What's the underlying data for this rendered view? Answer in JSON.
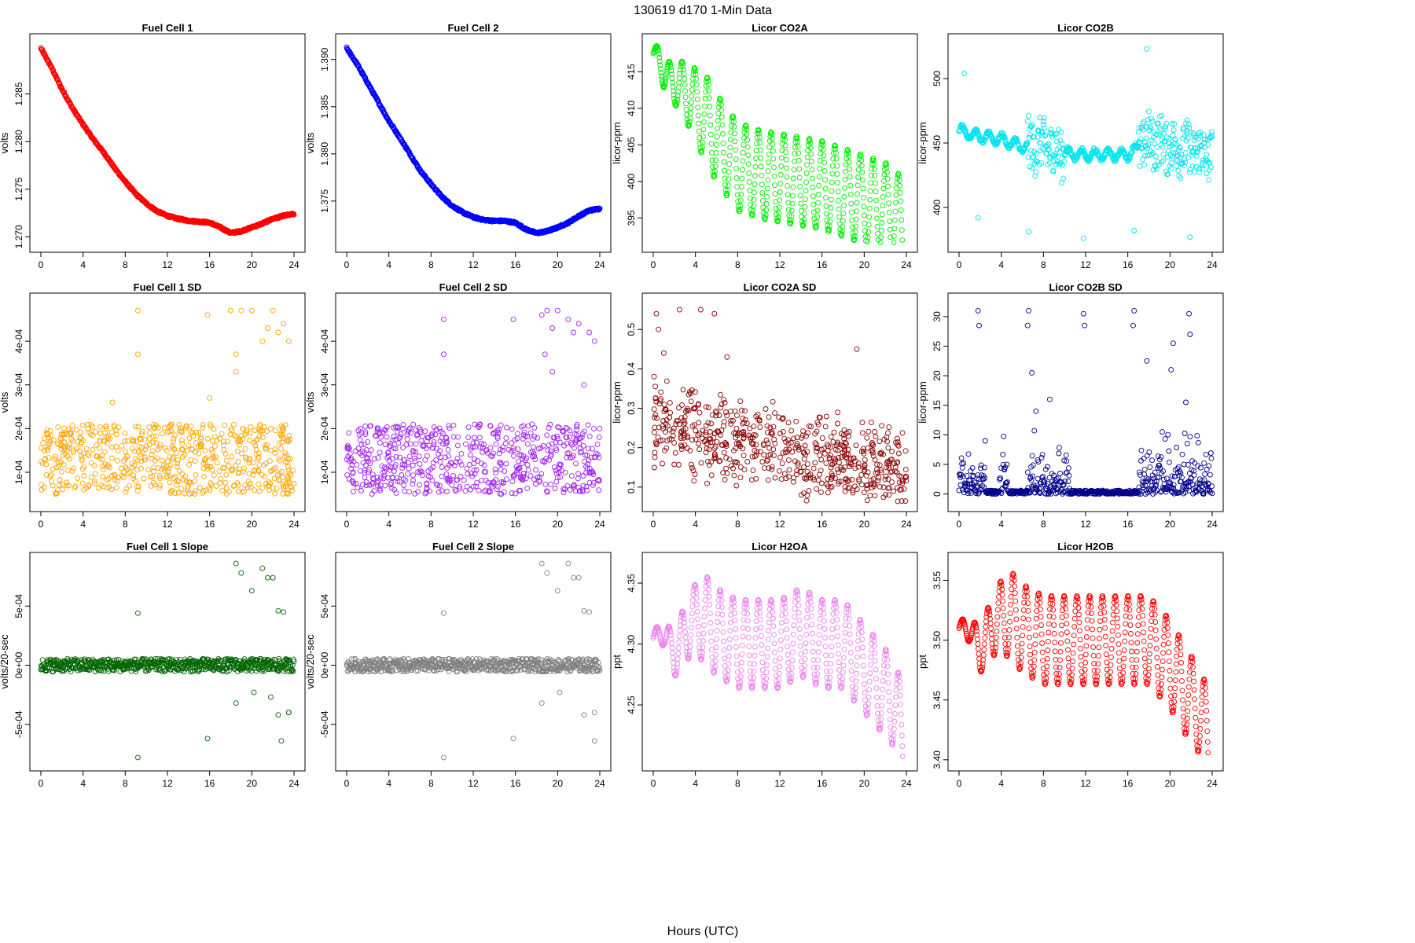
{
  "figure": {
    "title": "130619   d170   1-Min Data",
    "xlabel": "Hours (UTC)"
  },
  "chart_data": [
    {
      "type": "scatter",
      "title": "Fuel Cell 1",
      "xlabel": "",
      "ylabel": "volts",
      "color": "#ff0000",
      "xlim": [
        0,
        24
      ],
      "ylim": [
        1.2693,
        1.2904
      ],
      "xticks": [
        "0",
        "4",
        "8",
        "12",
        "16",
        "20",
        "24"
      ],
      "yticks": [
        "1.270",
        "1.275",
        "1.280",
        "1.285"
      ],
      "ytick_values": [
        1.27,
        1.275,
        1.28,
        1.285
      ],
      "series": [
        {
          "x": [
            0,
            1,
            2,
            3,
            4,
            5,
            6,
            7,
            8,
            9,
            10,
            11,
            12,
            13,
            14,
            15,
            16,
            17,
            18,
            19,
            20,
            21,
            22,
            23,
            24
          ],
          "y": [
            1.2898,
            1.2878,
            1.2855,
            1.2835,
            1.2818,
            1.2802,
            1.2788,
            1.2772,
            1.2758,
            1.2745,
            1.2735,
            1.2727,
            1.2722,
            1.2719,
            1.2717,
            1.2716,
            1.2715,
            1.271,
            1.2704,
            1.2706,
            1.271,
            1.2714,
            1.2719,
            1.2722,
            1.2724
          ]
        }
      ],
      "style": "line"
    },
    {
      "type": "scatter",
      "title": "Fuel Cell 2",
      "xlabel": "",
      "ylabel": "volts",
      "color": "#0000ff",
      "xlim": [
        0,
        24
      ],
      "ylim": [
        1.3705,
        1.3918
      ],
      "xticks": [
        "0",
        "4",
        "8",
        "12",
        "16",
        "20",
        "24"
      ],
      "yticks": [
        "1.375",
        "1.380",
        "1.385",
        "1.390"
      ],
      "ytick_values": [
        1.375,
        1.38,
        1.385,
        1.39
      ],
      "series": [
        {
          "x": [
            0,
            1,
            2,
            3,
            4,
            5,
            6,
            7,
            8,
            9,
            10,
            11,
            12,
            13,
            14,
            15,
            16,
            17,
            18,
            19,
            20,
            21,
            22,
            23,
            24
          ],
          "y": [
            1.3912,
            1.3895,
            1.3875,
            1.3855,
            1.3835,
            1.3818,
            1.38,
            1.3782,
            1.3768,
            1.3755,
            1.3745,
            1.3738,
            1.3733,
            1.373,
            1.3729,
            1.3729,
            1.3727,
            1.372,
            1.3716,
            1.3718,
            1.3722,
            1.3727,
            1.3734,
            1.374,
            1.3742
          ]
        }
      ],
      "style": "line"
    },
    {
      "type": "scatter",
      "title": "Licor CO2A",
      "xlabel": "",
      "ylabel": "licor-ppm",
      "color": "#00ee00",
      "xlim": [
        0,
        24
      ],
      "ylim": [
        391.5,
        419
      ],
      "xticks": [
        "0",
        "4",
        "8",
        "12",
        "16",
        "20",
        "24"
      ],
      "yticks": [
        "395",
        "400",
        "405",
        "410",
        "415"
      ],
      "ytick_values": [
        395,
        400,
        405,
        410,
        415
      ],
      "series": [
        {
          "x": [
            0,
            0.5,
            1,
            2,
            3,
            4,
            5,
            6,
            7,
            8,
            10,
            12,
            14,
            16,
            18,
            20,
            22,
            23,
            24
          ],
          "y": [
            417.5,
            417.2,
            414.5,
            413.5,
            412.5,
            410.5,
            408.5,
            406,
            404,
            402,
            401,
            400.5,
            400,
            399.5,
            398.5,
            397.5,
            396.5,
            396,
            392
          ]
        }
      ],
      "style": "oscillating"
    },
    {
      "type": "scatter",
      "title": "Licor CO2B",
      "xlabel": "",
      "ylabel": "licor-ppm",
      "color": "#00e5ee",
      "xlim": [
        0,
        24
      ],
      "ylim": [
        372,
        528
      ],
      "xticks": [
        "0",
        "4",
        "8",
        "12",
        "16",
        "20",
        "24"
      ],
      "yticks": [
        "400",
        "450",
        "500"
      ],
      "ytick_values": [
        400,
        450,
        500
      ],
      "series": [
        {
          "x": [
            0,
            2,
            4,
            6,
            8,
            10,
            12,
            14,
            16,
            18,
            20,
            22,
            24
          ],
          "y": [
            460,
            455,
            453,
            447,
            448,
            442,
            441,
            441,
            441,
            452,
            448,
            444,
            440
          ]
        }
      ],
      "style": "noisy"
    },
    {
      "type": "scatter",
      "title": "Fuel Cell 1 SD",
      "xlabel": "",
      "ylabel": "volts",
      "color": "#ffa500",
      "xlim": [
        0,
        24
      ],
      "ylim": [
        3e-05,
        0.00049
      ],
      "xticks": [
        "0",
        "4",
        "8",
        "12",
        "16",
        "20",
        "24"
      ],
      "yticks": [
        "1e-04",
        "2e-04",
        "3e-04",
        "4e-04"
      ],
      "ytick_values": [
        0.0001,
        0.0002,
        0.0003,
        0.0004
      ],
      "series": [
        {
          "x": [
            9.2,
            9.2,
            15.8,
            16,
            18,
            18.5,
            19,
            20,
            21,
            21.5,
            22,
            22.5,
            23,
            23.5,
            6.8,
            18.5
          ],
          "y": [
            0.00047,
            0.00037,
            0.00046,
            0.00027,
            0.00047,
            0.00037,
            0.00047,
            0.00047,
            0.0004,
            0.00043,
            0.00047,
            0.00042,
            0.00044,
            0.0004,
            0.00026,
            0.00033
          ]
        }
      ],
      "style": "band",
      "band": [
        5e-05,
        0.00021
      ]
    },
    {
      "type": "scatter",
      "title": "Fuel Cell 2 SD",
      "xlabel": "",
      "ylabel": "volts",
      "color": "#a020f0",
      "xlim": [
        0,
        24
      ],
      "ylim": [
        3e-05,
        0.00049
      ],
      "xticks": [
        "0",
        "4",
        "8",
        "12",
        "16",
        "20",
        "24"
      ],
      "yticks": [
        "1e-04",
        "2e-04",
        "3e-04",
        "4e-04"
      ],
      "ytick_values": [
        0.0001,
        0.0002,
        0.0003,
        0.0004
      ],
      "series": [
        {
          "x": [
            9.2,
            9.2,
            15.8,
            18.5,
            19,
            19.5,
            20,
            21,
            21.5,
            22,
            22.5,
            23,
            23.5,
            18.8,
            19.5
          ],
          "y": [
            0.00045,
            0.00037,
            0.00045,
            0.00046,
            0.00047,
            0.00043,
            0.00047,
            0.00045,
            0.00042,
            0.00044,
            0.0003,
            0.00042,
            0.0004,
            0.00037,
            0.00033
          ]
        }
      ],
      "style": "band",
      "band": [
        5e-05,
        0.00021
      ]
    },
    {
      "type": "scatter",
      "title": "Licor CO2A SD",
      "xlabel": "",
      "ylabel": "licor-ppm",
      "color": "#8b0000",
      "xlim": [
        0,
        24
      ],
      "ylim": [
        0.06,
        0.57
      ],
      "xticks": [
        "0",
        "4",
        "8",
        "12",
        "16",
        "20",
        "24"
      ],
      "yticks": [
        "0.1",
        "0.2",
        "0.3",
        "0.4",
        "0.5"
      ],
      "ytick_values": [
        0.1,
        0.2,
        0.3,
        0.4,
        0.5
      ],
      "series": [
        {
          "x": [
            0.3,
            0.5,
            2.5,
            4.5,
            5.8,
            19.3,
            1,
            7
          ],
          "y": [
            0.54,
            0.5,
            0.55,
            0.55,
            0.54,
            0.45,
            0.44,
            0.43
          ]
        }
      ],
      "style": "cloud"
    },
    {
      "type": "scatter",
      "title": "Licor CO2B SD",
      "xlabel": "",
      "ylabel": "licor-ppm",
      "color": "#00008b",
      "xlim": [
        0,
        24
      ],
      "ylim": [
        -1.5,
        32.5
      ],
      "xticks": [
        "0",
        "4",
        "8",
        "12",
        "16",
        "20",
        "24"
      ],
      "yticks": [
        "0",
        "5",
        "10",
        "15",
        "20",
        "25",
        "30"
      ],
      "ytick_values": [
        0,
        5,
        10,
        15,
        20,
        25,
        30
      ],
      "series": [
        {
          "x": [
            1.8,
            1.9,
            6.6,
            6.5,
            6.9,
            8.6,
            11.8,
            11.9,
            16.6,
            16.5,
            17.8,
            20.1,
            20.3,
            21.8,
            21.9,
            21.5,
            7.3
          ],
          "y": [
            31,
            28.5,
            31,
            28.5,
            20.5,
            16,
            30.5,
            28.5,
            31,
            28.5,
            22.5,
            21,
            25.5,
            30.5,
            27,
            15.5,
            14
          ]
        }
      ],
      "style": "spiky"
    },
    {
      "type": "scatter",
      "title": "Fuel Cell 1 Slope",
      "xlabel": "",
      "ylabel": "volts/20-sec",
      "color": "#006400",
      "xlim": [
        0,
        24
      ],
      "ylim": [
        -0.00082,
        0.00088
      ],
      "xticks": [
        "0",
        "4",
        "8",
        "12",
        "16",
        "20",
        "24"
      ],
      "yticks": [
        "-5e-04",
        "0e+00",
        "5e-04"
      ],
      "ytick_values": [
        -0.0005,
        0,
        0.0005
      ],
      "series": [
        {
          "x": [
            9.2,
            9.2,
            15.8,
            18.5,
            19,
            20,
            21,
            21.5,
            22,
            22.5,
            23,
            23.5,
            18.5,
            20.2,
            21.8,
            22.5,
            23.5,
            22.8
          ],
          "y": [
            0.00044,
            -0.00078,
            -0.00062,
            0.00086,
            0.00078,
            0.00063,
            0.00082,
            0.00074,
            0.00074,
            0.00046,
            0.00045,
            -0.0004,
            -0.00032,
            -0.00023,
            -0.00027,
            -0.00042,
            -0.0004,
            -0.00064
          ]
        }
      ],
      "style": "flat"
    },
    {
      "type": "scatter",
      "title": "Fuel Cell 2 Slope",
      "xlabel": "",
      "ylabel": "volts/20-sec",
      "color": "#808080",
      "xlim": [
        0,
        24
      ],
      "ylim": [
        -0.00082,
        0.00088
      ],
      "xticks": [
        "0",
        "4",
        "8",
        "12",
        "16",
        "20",
        "24"
      ],
      "yticks": [
        "-5e-04",
        "0e+00",
        "5e-04"
      ],
      "ytick_values": [
        -0.0005,
        0,
        0.0005
      ],
      "series": [
        {
          "x": [
            9.2,
            9.2,
            15.8,
            18.5,
            19,
            20,
            21,
            21.5,
            22,
            22.5,
            23,
            23.5,
            18.5,
            20.2,
            22.5,
            23.5
          ],
          "y": [
            0.00044,
            -0.00078,
            -0.00062,
            0.00086,
            0.00078,
            0.00063,
            0.00086,
            0.00074,
            0.00074,
            0.00046,
            0.00045,
            -0.0004,
            -0.00032,
            -0.00023,
            -0.00042,
            -0.00064
          ]
        }
      ],
      "style": "flat"
    },
    {
      "type": "scatter",
      "title": "Licor H2OA",
      "xlabel": "",
      "ylabel": "ppt",
      "color": "#ee82ee",
      "xlim": [
        0,
        24
      ],
      "ylim": [
        4.203,
        4.368
      ],
      "xticks": [
        "0",
        "4",
        "8",
        "12",
        "16",
        "20",
        "24"
      ],
      "yticks": [
        "4.25",
        "4.30",
        "4.35"
      ],
      "ytick_values": [
        4.25,
        4.3,
        4.35
      ],
      "series": [
        {
          "x": [
            0,
            1,
            2,
            3,
            4,
            5,
            6,
            8,
            10,
            12,
            14,
            16,
            18,
            20,
            22,
            23,
            24
          ],
          "y": [
            4.305,
            4.31,
            4.29,
            4.31,
            4.32,
            4.32,
            4.31,
            4.3,
            4.3,
            4.3,
            4.31,
            4.3,
            4.3,
            4.28,
            4.26,
            4.25,
            4.21
          ]
        }
      ],
      "style": "oscillating"
    },
    {
      "type": "scatter",
      "title": "Licor H2OB",
      "xlabel": "",
      "ylabel": "ppt",
      "color": "#ff0000",
      "xlim": [
        0,
        24
      ],
      "ylim": [
        3.398,
        3.566
      ],
      "xticks": [
        "0",
        "4",
        "8",
        "12",
        "16",
        "20",
        "24"
      ],
      "yticks": [
        "3.40",
        "3.45",
        "3.50",
        "3.55"
      ],
      "ytick_values": [
        3.4,
        3.45,
        3.5,
        3.55
      ],
      "series": [
        {
          "x": [
            0,
            1,
            2,
            3,
            4,
            5,
            6,
            8,
            10,
            12,
            14,
            16,
            18,
            20,
            22,
            23,
            24
          ],
          "y": [
            3.51,
            3.51,
            3.49,
            3.51,
            3.52,
            3.52,
            3.51,
            3.5,
            3.5,
            3.5,
            3.5,
            3.5,
            3.5,
            3.48,
            3.45,
            3.44,
            3.4
          ]
        }
      ],
      "style": "oscillating"
    }
  ]
}
